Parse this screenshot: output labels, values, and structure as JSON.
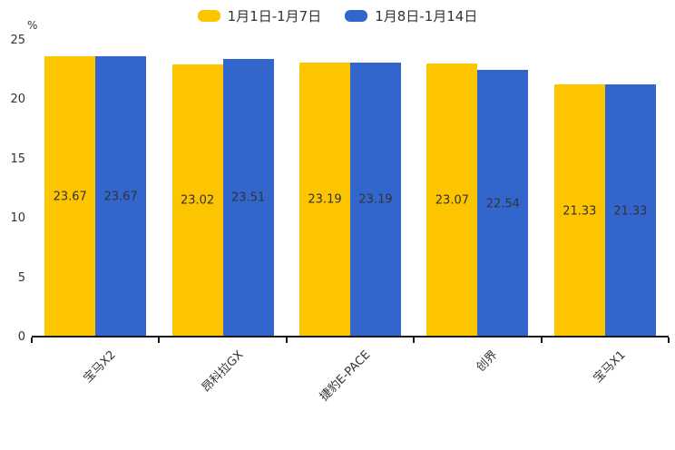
{
  "background": "#ffffff",
  "text_color": "#333333",
  "axis_color": "#16181d",
  "chart_data": {
    "type": "bar",
    "title": "",
    "categories": [
      "宝马X2",
      "昂科拉GX",
      "捷豹E-PACE",
      "创界",
      "宝马X1"
    ],
    "series": [
      {
        "name": "1月1日-1月7日",
        "color": "#FDC500",
        "values": [
          23.67,
          23.02,
          23.19,
          23.07,
          21.33
        ]
      },
      {
        "name": "1月8日-1月14日",
        "color": "#3366CC",
        "values": [
          23.67,
          23.51,
          23.19,
          22.54,
          21.33
        ]
      }
    ],
    "ylabel": "%",
    "ylim": [
      0,
      25
    ],
    "yticks": [
      0,
      5,
      10,
      15,
      20,
      25
    ],
    "legend_position": "top-center",
    "grid": false,
    "value_labels": "inside-middle",
    "value_label_decimals": 2,
    "xtick_rotation": 45
  }
}
